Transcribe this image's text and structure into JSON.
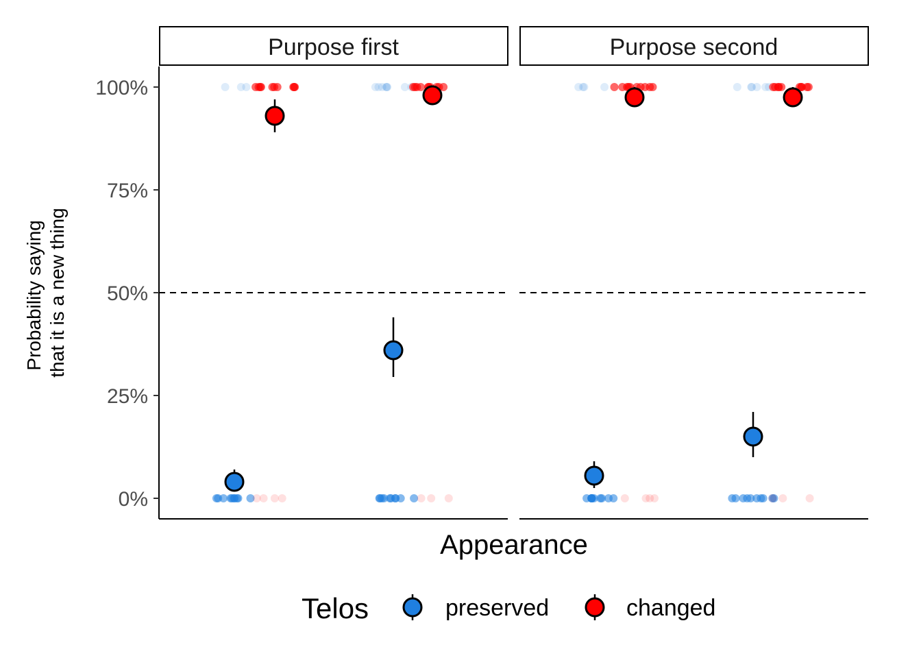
{
  "chart_data": {
    "type": "scatter",
    "title": "",
    "xlabel": "Appearance",
    "ylabel_lines": [
      "Probability saying",
      "that it is a new thing"
    ],
    "ylim": [
      -0.05,
      1.05
    ],
    "y_ticks": [
      0,
      0.25,
      0.5,
      0.75,
      1.0
    ],
    "y_tick_labels": [
      "0%",
      "25%",
      "50%",
      "75%",
      "100%"
    ],
    "reference_line": {
      "y": 0.5,
      "style": "dashed"
    },
    "grid": false,
    "legend": {
      "title": "Telos",
      "position": "bottom",
      "entries": [
        {
          "label": "preserved",
          "color": "#1f7fe0"
        },
        {
          "label": "changed",
          "color": "#ff0000"
        }
      ]
    },
    "panels": [
      {
        "label": "Purpose first",
        "groups": [
          {
            "slot": 0,
            "telos": "preserved",
            "mean": 0.04,
            "ci": [
              0.02,
              0.07
            ],
            "raw_low_count": 10,
            "raw_high_count": 3
          },
          {
            "slot": 1,
            "telos": "changed",
            "mean": 0.93,
            "ci": [
              0.89,
              0.97
            ],
            "raw_low_count": 4,
            "raw_high_count": 10
          },
          {
            "slot": 2,
            "telos": "preserved",
            "mean": 0.36,
            "ci": [
              0.295,
              0.44
            ],
            "raw_low_count": 10,
            "raw_high_count": 8
          },
          {
            "slot": 3,
            "telos": "changed",
            "mean": 0.98,
            "ci": [
              0.96,
              1.0
            ],
            "raw_low_count": 3,
            "raw_high_count": 10
          }
        ]
      },
      {
        "label": "Purpose second",
        "groups": [
          {
            "slot": 0,
            "telos": "preserved",
            "mean": 0.055,
            "ci": [
              0.025,
              0.09
            ],
            "raw_low_count": 10,
            "raw_high_count": 4
          },
          {
            "slot": 1,
            "telos": "changed",
            "mean": 0.975,
            "ci": [
              0.955,
              1.0
            ],
            "raw_low_count": 4,
            "raw_high_count": 10
          },
          {
            "slot": 2,
            "telos": "preserved",
            "mean": 0.15,
            "ci": [
              0.1,
              0.21
            ],
            "raw_low_count": 10,
            "raw_high_count": 6
          },
          {
            "slot": 3,
            "telos": "changed",
            "mean": 0.975,
            "ci": [
              0.955,
              1.0
            ],
            "raw_low_count": 3,
            "raw_high_count": 10
          }
        ]
      }
    ]
  }
}
